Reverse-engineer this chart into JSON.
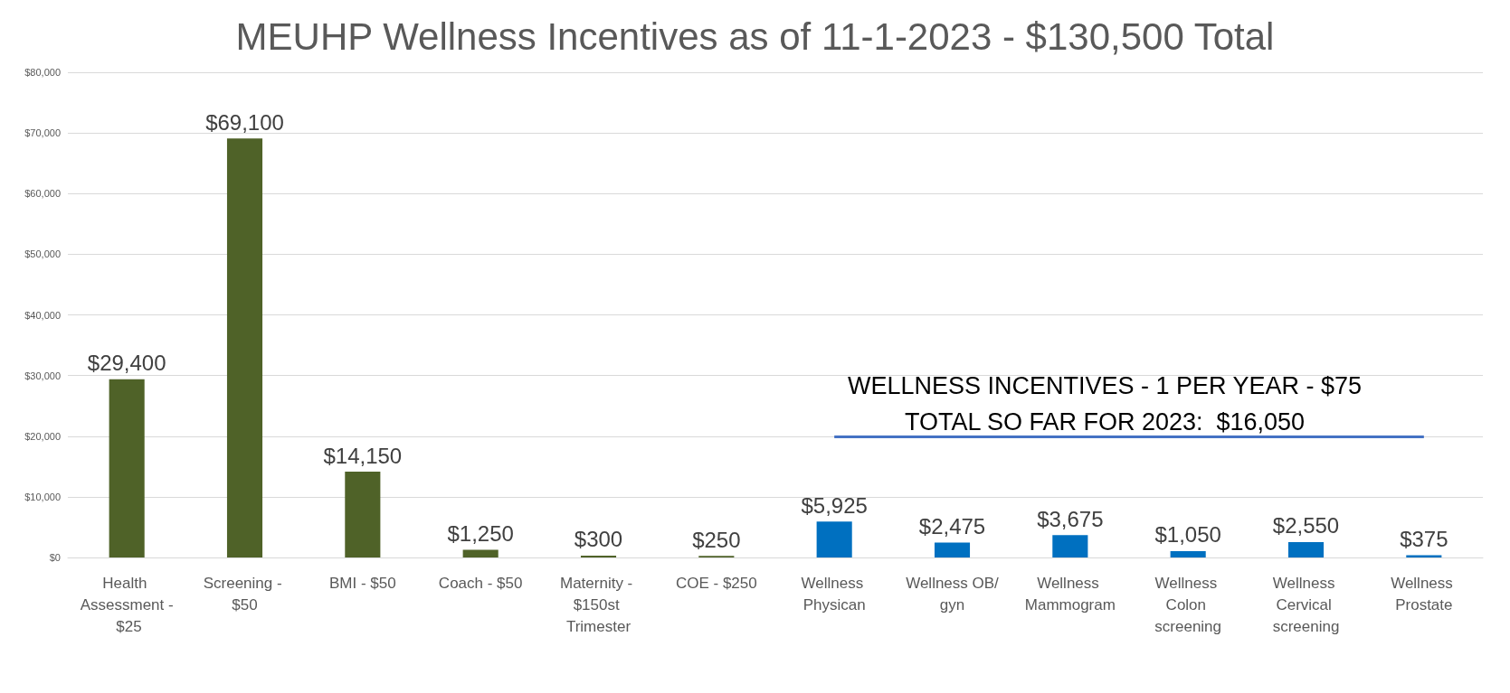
{
  "chart_data": {
    "type": "bar",
    "title": "MEUHP Wellness Incentives as of 11-1-2023 - $130,500 Total",
    "categories": [
      "Health Assessment - $25",
      "Screening - $50",
      "BMI - $50",
      "Coach - $50",
      "Maternity - $150st Trimester",
      "COE - $250",
      "Wellness Physican",
      "Wellness OB/gyn",
      "Wellness Mammogram",
      "Wellness Colon screening",
      "Wellness Cervical screening",
      "Wellness Prostate"
    ],
    "values": [
      29400,
      69100,
      14150,
      1250,
      300,
      250,
      5925,
      2475,
      3675,
      1050,
      2550,
      375
    ],
    "value_labels": [
      "$29,400",
      "$69,100",
      "$14,150",
      "$1,250",
      "$300",
      "$250",
      "$5,925",
      "$2,475",
      "$3,675",
      "$1,050",
      "$2,550",
      "$375"
    ],
    "colors": [
      "#4f6228",
      "#4f6228",
      "#4f6228",
      "#4f6228",
      "#4f6228",
      "#4f6228",
      "#0070c0",
      "#0070c0",
      "#0070c0",
      "#0070c0",
      "#0070c0",
      "#0070c0"
    ],
    "ylim": [
      0,
      80000
    ],
    "yticks": [
      {
        "value": 0,
        "label": "$0"
      },
      {
        "value": 10000,
        "label": "$10,000"
      },
      {
        "value": 20000,
        "label": "$20,000"
      },
      {
        "value": 30000,
        "label": "$30,000"
      },
      {
        "value": 40000,
        "label": "$40,000"
      },
      {
        "value": 50000,
        "label": "$50,000"
      },
      {
        "value": 60000,
        "label": "$60,000"
      },
      {
        "value": 70000,
        "label": "$70,000"
      },
      {
        "value": 80000,
        "label": "$80,000"
      }
    ],
    "ref_lines": [
      {
        "axis": "y",
        "value": 20000,
        "color": "#4472c4"
      }
    ],
    "annotations": [
      "WELLNESS INCENTIVES - 1 PER YEAR - $75\nTOTAL SO FAR FOR 2023:  $16,050"
    ],
    "grid": "y"
  }
}
